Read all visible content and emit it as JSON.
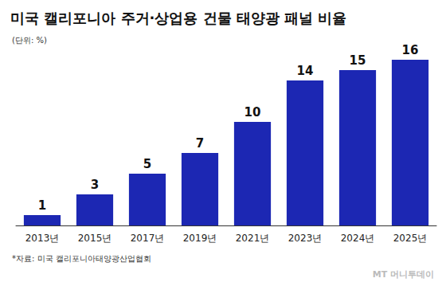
{
  "chart_data": {
    "type": "bar",
    "title": "미국 캘리포니아 주거·상업용 건물 태양광 패널 비율",
    "subtitle": "(단위: %)",
    "categories": [
      "2013년",
      "2015년",
      "2017년",
      "2019년",
      "2021년",
      "2023년",
      "2024년",
      "2025년"
    ],
    "values": [
      1,
      3,
      5,
      7,
      10,
      14,
      15,
      16
    ],
    "color": "#1c27b3",
    "ylim": [
      0,
      16
    ],
    "grid": false,
    "data_labels": true,
    "tick_labels": "x",
    "source": "*자료: 미국 캘리포니아태양광산업협회",
    "credit": "MT 머니투데이"
  }
}
